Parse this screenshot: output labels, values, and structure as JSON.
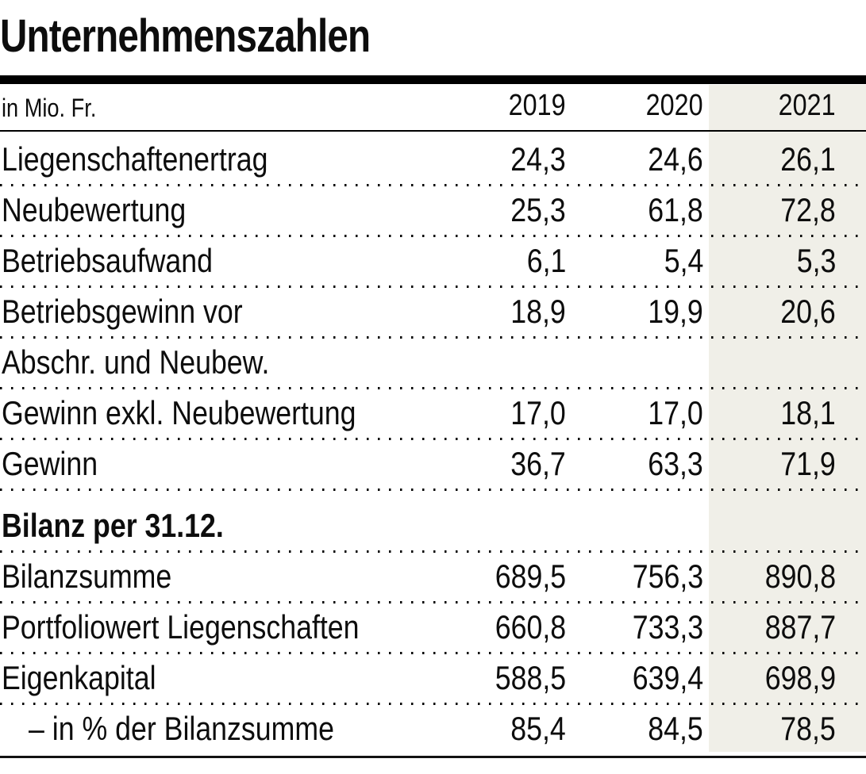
{
  "title": "Unternehmenszahlen",
  "table": {
    "unit_label": "in Mio. Fr.",
    "years": [
      "2019",
      "2020",
      "2021"
    ],
    "highlighted_year": "2021",
    "rows": [
      {
        "label": "Liegenschaftenertrag",
        "type": "data",
        "values": [
          "24,3",
          "24,6",
          "26,1"
        ]
      },
      {
        "label": "Neubewertung",
        "type": "data",
        "values": [
          "25,3",
          "61,8",
          "72,8"
        ]
      },
      {
        "label": "Betriebsaufwand",
        "type": "data",
        "values": [
          "6,1",
          "5,4",
          "5,3"
        ]
      },
      {
        "label": "Betriebsgewinn vor",
        "type": "data",
        "values": [
          "18,9",
          "19,9",
          "20,6"
        ]
      },
      {
        "label": "Abschr. und Neubew.",
        "type": "data",
        "values": [
          "",
          "",
          ""
        ]
      },
      {
        "label": "Gewinn exkl. Neubewertung",
        "type": "data",
        "values": [
          "17,0",
          "17,0",
          "18,1"
        ]
      },
      {
        "label": "Gewinn",
        "type": "data",
        "values": [
          "36,7",
          "63,3",
          "71,9"
        ]
      },
      {
        "label": "Bilanz per 31.12.",
        "type": "section",
        "values": [
          "",
          "",
          ""
        ]
      },
      {
        "label": "Bilanzsumme",
        "type": "data",
        "values": [
          "689,5",
          "756,3",
          "890,8"
        ]
      },
      {
        "label": "Portfoliowert Liegenschaften",
        "type": "data",
        "values": [
          "660,8",
          "733,3",
          "887,7"
        ]
      },
      {
        "label": "Eigenkapital",
        "type": "data",
        "values": [
          "588,5",
          "639,4",
          "698,9"
        ]
      },
      {
        "label": "– in % der Bilanzsumme",
        "type": "data",
        "values": [
          "85,4",
          "84,5",
          "78,5"
        ],
        "indent": true
      }
    ]
  },
  "colors": {
    "text": "#0d0d0d",
    "rule": "#000000",
    "highlight_column_bg": "#f0efe8"
  },
  "chart_data": {
    "type": "table",
    "title": "Unternehmenszahlen",
    "unit": "in Mio. Fr.",
    "columns": [
      2019,
      2020,
      2021
    ],
    "highlighted_column": 2021,
    "sections": [
      {
        "name": "",
        "rows": [
          {
            "label": "Liegenschaftenertrag",
            "values": [
              24.3,
              24.6,
              26.1
            ]
          },
          {
            "label": "Neubewertung",
            "values": [
              25.3,
              61.8,
              72.8
            ]
          },
          {
            "label": "Betriebsaufwand",
            "values": [
              6.1,
              5.4,
              5.3
            ]
          },
          {
            "label": "Betriebsgewinn vor Abschr. und Neubew.",
            "values": [
              18.9,
              19.9,
              20.6
            ]
          },
          {
            "label": "Gewinn exkl. Neubewertung",
            "values": [
              17.0,
              17.0,
              18.1
            ]
          },
          {
            "label": "Gewinn",
            "values": [
              36.7,
              63.3,
              71.9
            ]
          }
        ]
      },
      {
        "name": "Bilanz per 31.12.",
        "rows": [
          {
            "label": "Bilanzsumme",
            "values": [
              689.5,
              756.3,
              890.8
            ]
          },
          {
            "label": "Portfoliowert Liegenschaften",
            "values": [
              660.8,
              733.3,
              887.7
            ]
          },
          {
            "label": "Eigenkapital",
            "values": [
              588.5,
              639.4,
              698.9
            ]
          },
          {
            "label": "– in % der Bilanzsumme",
            "values": [
              85.4,
              84.5,
              78.5
            ]
          }
        ]
      }
    ]
  }
}
